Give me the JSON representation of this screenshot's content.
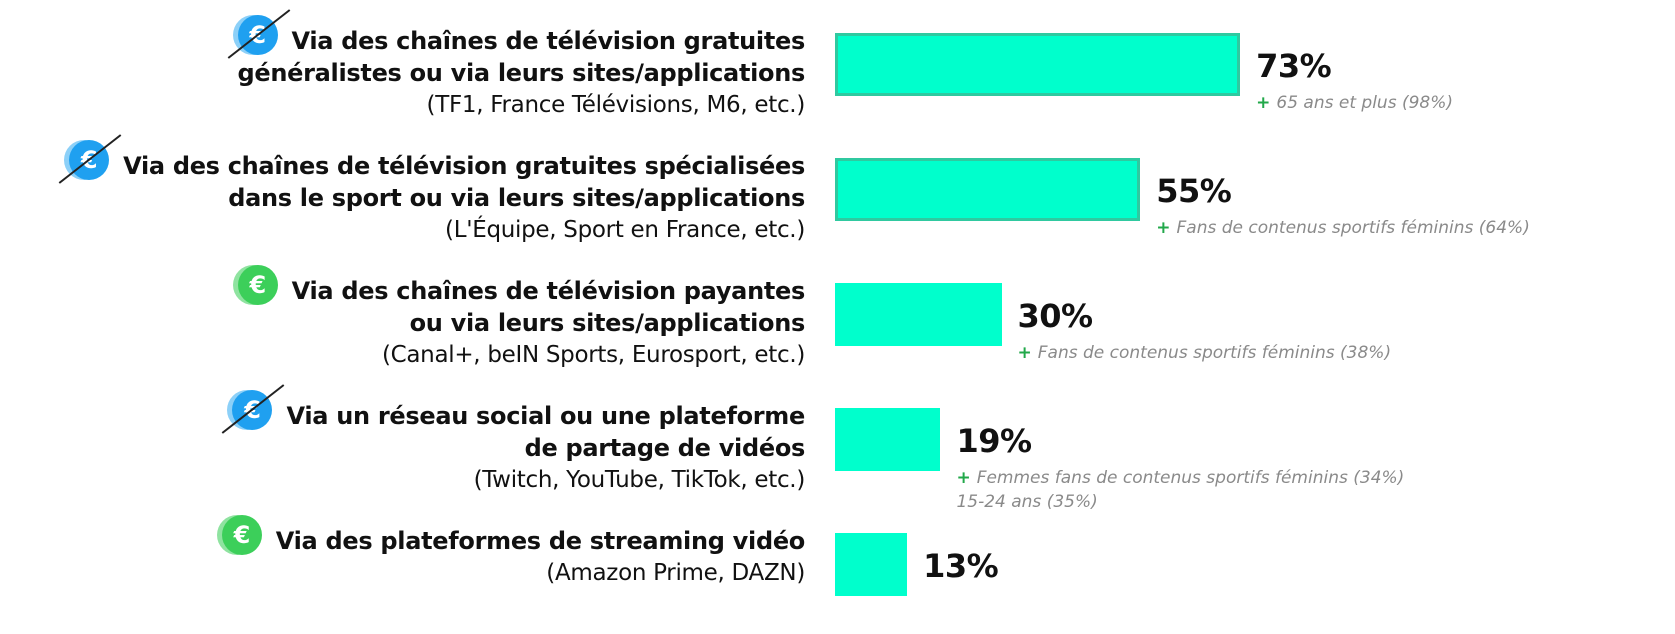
{
  "chart_data": {
    "type": "bar",
    "orientation": "horizontal",
    "categories": [
      "Via des chaînes de télévision gratuites\ngénéralistes ou via leurs sites/applications",
      "Via des chaînes de télévision gratuites spécialisées\ndans le sport ou via leurs sites/applications",
      "Via des chaînes de télévision payantes\nou via leurs sites/applications",
      "Via un réseau social ou une plateforme\nde partage de vidéos",
      "Via des plateformes de streaming vidéo"
    ],
    "category_details": [
      "(TF1, France Télévisions, M6, etc.)",
      "(L'Équipe, Sport en France, etc.)",
      "(Canal+, beIN Sports, Eurosport, etc.)",
      "(Twitch, YouTube, TikTok, etc.)",
      "(Amazon Prime, DAZN)"
    ],
    "values": [
      73,
      55,
      30,
      19,
      13
    ],
    "value_labels": [
      "73%",
      "55%",
      "30%",
      "19%",
      "13%"
    ],
    "color": "#00ffcc",
    "note_marker": "+",
    "notes": [
      [
        "65 ans et plus (98%)"
      ],
      [
        "Fans de contenus sportifs féminins (64%)"
      ],
      [
        "Fans de contenus sportifs féminins (38%)"
      ],
      [
        "Femmes fans de contenus sportifs féminins (34%)",
        "15-24 ans (35%)"
      ],
      []
    ],
    "icon_symbol": "€",
    "paid": [
      false,
      false,
      true,
      false,
      true
    ]
  }
}
